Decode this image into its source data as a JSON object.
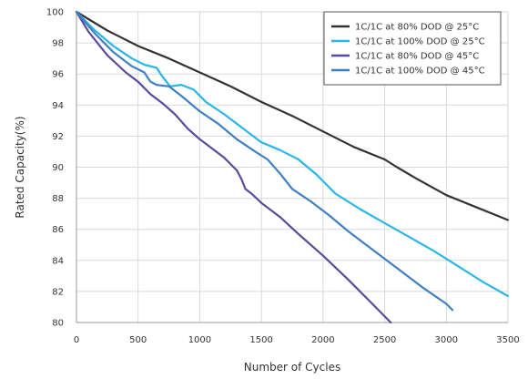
{
  "chart_data": {
    "type": "line",
    "xlabel": "Number of Cycles",
    "ylabel": "Rated Capacity(%)",
    "xlim": [
      0,
      3500
    ],
    "ylim": [
      80,
      100
    ],
    "x_ticks": [
      0,
      500,
      1000,
      1500,
      2000,
      2500,
      3000,
      3500
    ],
    "y_ticks": [
      80,
      82,
      84,
      86,
      88,
      90,
      92,
      94,
      96,
      98,
      100
    ],
    "grid": true,
    "legend_position": "top-right",
    "series": [
      {
        "name": "1C/1C at 80% DOD @ 25°C",
        "color": "#333333",
        "points": [
          [
            0,
            100
          ],
          [
            250,
            98.8
          ],
          [
            500,
            97.8
          ],
          [
            750,
            97.0
          ],
          [
            1000,
            96.1
          ],
          [
            1250,
            95.2
          ],
          [
            1500,
            94.2
          ],
          [
            1750,
            93.3
          ],
          [
            2000,
            92.3
          ],
          [
            2250,
            91.3
          ],
          [
            2500,
            90.5
          ],
          [
            2600,
            90.0
          ],
          [
            2750,
            89.3
          ],
          [
            3000,
            88.2
          ],
          [
            3250,
            87.4
          ],
          [
            3500,
            86.6
          ]
        ]
      },
      {
        "name": "1C/1C at 100% DOD @ 25°C",
        "color": "#29b6e8",
        "points": [
          [
            0,
            100
          ],
          [
            150,
            98.8
          ],
          [
            300,
            97.8
          ],
          [
            450,
            97.0
          ],
          [
            550,
            96.6
          ],
          [
            650,
            96.4
          ],
          [
            700,
            95.8
          ],
          [
            760,
            95.2
          ],
          [
            850,
            95.3
          ],
          [
            950,
            95.0
          ],
          [
            1050,
            94.2
          ],
          [
            1200,
            93.4
          ],
          [
            1350,
            92.5
          ],
          [
            1500,
            91.6
          ],
          [
            1650,
            91.1
          ],
          [
            1800,
            90.5
          ],
          [
            1950,
            89.5
          ],
          [
            2100,
            88.3
          ],
          [
            2300,
            87.3
          ],
          [
            2500,
            86.4
          ],
          [
            2700,
            85.5
          ],
          [
            2900,
            84.6
          ],
          [
            3100,
            83.6
          ],
          [
            3300,
            82.6
          ],
          [
            3500,
            81.7
          ]
        ]
      },
      {
        "name": "1C/1C at 80% DOD @ 45°C",
        "color": "#5b4a9e",
        "points": [
          [
            0,
            100
          ],
          [
            100,
            98.7
          ],
          [
            250,
            97.2
          ],
          [
            400,
            96.1
          ],
          [
            500,
            95.5
          ],
          [
            600,
            94.7
          ],
          [
            700,
            94.1
          ],
          [
            800,
            93.4
          ],
          [
            900,
            92.5
          ],
          [
            1000,
            91.8
          ],
          [
            1100,
            91.2
          ],
          [
            1200,
            90.6
          ],
          [
            1300,
            89.8
          ],
          [
            1340,
            89.2
          ],
          [
            1370,
            88.6
          ],
          [
            1420,
            88.3
          ],
          [
            1500,
            87.7
          ],
          [
            1650,
            86.8
          ],
          [
            1800,
            85.7
          ],
          [
            2000,
            84.3
          ],
          [
            2200,
            82.8
          ],
          [
            2400,
            81.2
          ],
          [
            2550,
            80.0
          ]
        ]
      },
      {
        "name": "1C/1C at 100% DOD @ 45°C",
        "color": "#3f7fc4",
        "points": [
          [
            0,
            100
          ],
          [
            150,
            98.6
          ],
          [
            300,
            97.4
          ],
          [
            450,
            96.5
          ],
          [
            550,
            96.1
          ],
          [
            600,
            95.5
          ],
          [
            650,
            95.3
          ],
          [
            750,
            95.2
          ],
          [
            850,
            94.6
          ],
          [
            1000,
            93.6
          ],
          [
            1150,
            92.8
          ],
          [
            1300,
            91.8
          ],
          [
            1450,
            91.0
          ],
          [
            1550,
            90.5
          ],
          [
            1650,
            89.6
          ],
          [
            1750,
            88.6
          ],
          [
            1900,
            87.8
          ],
          [
            2050,
            86.9
          ],
          [
            2200,
            85.9
          ],
          [
            2400,
            84.7
          ],
          [
            2600,
            83.5
          ],
          [
            2800,
            82.3
          ],
          [
            3000,
            81.2
          ],
          [
            3050,
            80.8
          ]
        ]
      }
    ]
  }
}
